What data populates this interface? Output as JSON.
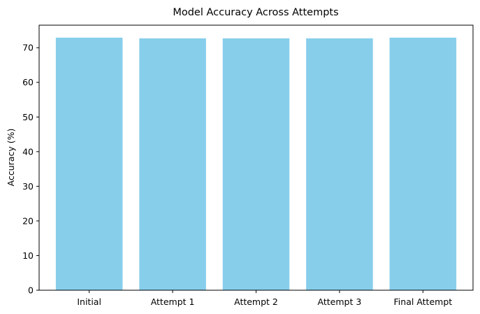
{
  "chart_data": {
    "type": "bar",
    "title": "Model Accuracy Across Attempts",
    "xlabel": "",
    "ylabel": "Accuracy (%)",
    "categories": [
      "Initial",
      "Attempt 1",
      "Attempt 2",
      "Attempt 3",
      "Final Attempt"
    ],
    "values": [
      72.9,
      72.7,
      72.7,
      72.7,
      72.9
    ],
    "ylim": [
      0,
      76.5
    ],
    "yticks": [
      0,
      10,
      20,
      30,
      40,
      50,
      60,
      70
    ],
    "bar_color": "#87ceeb",
    "grid": false,
    "legend": "none"
  }
}
